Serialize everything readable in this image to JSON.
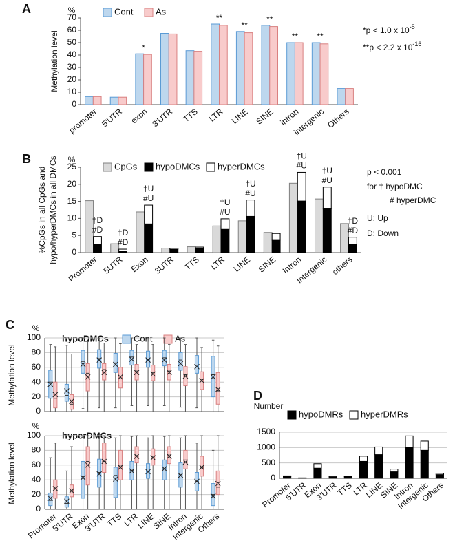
{
  "chart_data": [
    {
      "type": "bar",
      "label": "A",
      "ylabel": "Methylation level",
      "y_unit": "%",
      "categories": [
        "promoter",
        "5'UTR",
        "exon",
        "3'UTR",
        "TTS",
        "LTR",
        "LINE",
        "SINE",
        "intron",
        "intergenic",
        "Others"
      ],
      "series": [
        {
          "name": "Cont",
          "color": "#bdd7ee",
          "edgecolor": "#5b9bd5",
          "values": [
            6.5,
            6,
            41,
            57.5,
            43.5,
            65,
            59,
            64,
            50,
            50,
            13
          ]
        },
        {
          "name": "As",
          "color": "#f8cbcb",
          "edgecolor": "#d98080",
          "values": [
            6.5,
            6,
            40.5,
            57,
            43,
            64,
            58,
            63,
            50,
            49,
            13
          ]
        }
      ],
      "significance": [
        null,
        null,
        "*",
        null,
        null,
        "**",
        "**",
        "**",
        "**",
        "**",
        null
      ],
      "notes": [
        {
          "text": "*p < 1.0 x 10",
          "sup": "-5"
        },
        {
          "text": "**p < 2.2 x 10",
          "sup": "-16"
        }
      ],
      "ylim": [
        0,
        70
      ],
      "yticks": [
        0,
        10,
        20,
        30,
        40,
        50,
        60,
        70
      ],
      "grid": false
    },
    {
      "type": "bar",
      "label": "B",
      "ylabel": [
        "%CpGs in all CpGs and",
        "hypo/hyperDMCs in all DMCs"
      ],
      "y_unit": "%",
      "categories": [
        "Promoter",
        "5UTR",
        "Exon",
        "3UTR",
        "TTS",
        "LTR",
        "LINE",
        "SINE",
        "Intron",
        "Intergenic",
        "others"
      ],
      "series": [
        {
          "name": "CpGs",
          "color": "#d9d9d9",
          "edgecolor": "#808080",
          "values": [
            15.2,
            2.6,
            11.9,
            1.3,
            1.7,
            7.8,
            9.3,
            5.9,
            20.3,
            15.7,
            8.5
          ]
        },
        {
          "name": "hypoDMCs",
          "color": "#000000",
          "edgecolor": "#000000",
          "stacked": true,
          "values": [
            2.5,
            0.5,
            8.4,
            1.0,
            1.2,
            6.8,
            10.6,
            3.6,
            15.1,
            13.0,
            2.4
          ]
        },
        {
          "name": "hyperDMCs",
          "color": "#ffffff",
          "edgecolor": "#000000",
          "stacked": true,
          "values": [
            2.2,
            0.5,
            5.5,
            0.3,
            0.4,
            3.1,
            4.8,
            2.0,
            8.4,
            6.2,
            2.1
          ]
        }
      ],
      "annotations": [
        [
          "†D",
          "#D"
        ],
        [
          "†D",
          "#D"
        ],
        [
          "†U",
          "#U"
        ],
        null,
        null,
        [
          "†U",
          "#U"
        ],
        [
          "†U",
          "#U"
        ],
        null,
        [
          "†U",
          "#U"
        ],
        [
          "†U",
          "#U"
        ],
        [
          "†D",
          "#D"
        ]
      ],
      "notes": [
        "p < 0.001",
        "for † hypoDMC",
        "# hyperDMC",
        "U: Up",
        "D: Down"
      ],
      "ylim": [
        0,
        25
      ],
      "yticks": [
        0,
        5,
        10,
        15,
        20,
        25
      ],
      "grid": false
    },
    {
      "type": "box",
      "label": "C",
      "title": "hypoDMCs",
      "ylabel": "Methylation level",
      "y_unit": "%",
      "series": [
        {
          "name": "Cont",
          "color": "#bdd7ee",
          "edgecolor": "#5b9bd5",
          "boxes": [
            {
              "whisker_low": 0,
              "q1": 18,
              "median": 40,
              "q3": 56,
              "whisker_high": 91,
              "mean": 37
            },
            {
              "whisker_low": 0,
              "q1": 14,
              "median": 22,
              "q3": 37,
              "whisker_high": 90,
              "mean": 28
            },
            {
              "whisker_low": 4,
              "q1": 52,
              "median": 68,
              "q3": 83,
              "whisker_high": 100,
              "mean": 64
            },
            {
              "whisker_low": 5,
              "q1": 59,
              "median": 72,
              "q3": 84,
              "whisker_high": 100,
              "mean": 70
            },
            {
              "whisker_low": 5,
              "q1": 53,
              "median": 66,
              "q3": 79,
              "whisker_high": 100,
              "mean": 64
            },
            {
              "whisker_low": 8,
              "q1": 63,
              "median": 74,
              "q3": 83,
              "whisker_high": 100,
              "mean": 71
            },
            {
              "whisker_low": 8,
              "q1": 60,
              "median": 71,
              "q3": 82,
              "whisker_high": 100,
              "mean": 70
            },
            {
              "whisker_low": 8,
              "q1": 62,
              "median": 73,
              "q3": 83,
              "whisker_high": 100,
              "mean": 70
            },
            {
              "whisker_low": 6,
              "q1": 56,
              "median": 70,
              "q3": 80,
              "whisker_high": 100,
              "mean": 65
            },
            {
              "whisker_low": 5,
              "q1": 52,
              "median": 63,
              "q3": 76,
              "whisker_high": 100,
              "mean": 61
            },
            {
              "whisker_low": 0,
              "q1": 20,
              "median": 50,
              "q3": 75,
              "whisker_high": 97,
              "mean": 47
            }
          ]
        },
        {
          "name": "As",
          "color": "#f8cbcb",
          "edgecolor": "#d98080",
          "boxes": [
            {
              "whisker_low": 0,
              "q1": 5,
              "median": 18,
              "q3": 40,
              "whisker_high": 88,
              "mean": 23
            },
            {
              "whisker_low": 0,
              "q1": 3,
              "median": 10,
              "q3": 23,
              "whisker_high": 78,
              "mean": 14
            },
            {
              "whisker_low": 0,
              "q1": 28,
              "median": 52,
              "q3": 65,
              "whisker_high": 95,
              "mean": 47
            },
            {
              "whisker_low": 0,
              "q1": 43,
              "median": 57,
              "q3": 65,
              "whisker_high": 93,
              "mean": 53
            },
            {
              "whisker_low": 0,
              "q1": 32,
              "median": 48,
              "q3": 60,
              "whisker_high": 92,
              "mean": 47
            },
            {
              "whisker_low": 0,
              "q1": 43,
              "median": 55,
              "q3": 64,
              "whisker_high": 91,
              "mean": 53
            },
            {
              "whisker_low": 0,
              "q1": 42,
              "median": 53,
              "q3": 63,
              "whisker_high": 91,
              "mean": 51
            },
            {
              "whisker_low": 0,
              "q1": 43,
              "median": 55,
              "q3": 64,
              "whisker_high": 91,
              "mean": 53
            },
            {
              "whisker_low": 0,
              "q1": 35,
              "median": 50,
              "q3": 61,
              "whisker_high": 91,
              "mean": 48
            },
            {
              "whisker_low": 0,
              "q1": 30,
              "median": 44,
              "q3": 54,
              "whisker_high": 87,
              "mean": 42
            },
            {
              "whisker_low": 0,
              "q1": 10,
              "median": 28,
              "q3": 53,
              "whisker_high": 89,
              "mean": 30
            }
          ]
        }
      ],
      "ylim": [
        0,
        100
      ],
      "yticks": [
        0,
        20,
        40,
        60,
        80,
        100
      ],
      "grid": true
    },
    {
      "type": "box",
      "title": "hyperDMCs",
      "ylabel": "Methylation level",
      "y_unit": "%",
      "categories": [
        "Promoter",
        "5'UTR",
        "Exon",
        "3'UTR",
        "TTS",
        "LTR",
        "LINE",
        "SINE",
        "Intron",
        "Intergenic",
        "Others"
      ],
      "series": [
        {
          "color": "#bdd7ee",
          "edgecolor": "#5b9bd5",
          "boxes": [
            {
              "whisker_low": 0,
              "q1": 5,
              "median": 12,
              "q3": 22,
              "whisker_high": 70,
              "mean": 15
            },
            {
              "whisker_low": 0,
              "q1": 3,
              "median": 8,
              "q3": 17,
              "whisker_high": 52,
              "mean": 11
            },
            {
              "whisker_low": 0,
              "q1": 15,
              "median": 45,
              "q3": 65,
              "whisker_high": 98,
              "mean": 43
            },
            {
              "whisker_low": 0,
              "q1": 30,
              "median": 50,
              "q3": 68,
              "whisker_high": 96,
              "mean": 48
            },
            {
              "whisker_low": 0,
              "q1": 16,
              "median": 46,
              "q3": 57,
              "whisker_high": 97,
              "mean": 41
            },
            {
              "whisker_low": 0,
              "q1": 40,
              "median": 53,
              "q3": 65,
              "whisker_high": 99,
              "mean": 52
            },
            {
              "whisker_low": 0,
              "q1": 42,
              "median": 52,
              "q3": 62,
              "whisker_high": 97,
              "mean": 51
            },
            {
              "whisker_low": 0,
              "q1": 40,
              "median": 55,
              "q3": 67,
              "whisker_high": 99,
              "mean": 55
            },
            {
              "whisker_low": 0,
              "q1": 30,
              "median": 47,
              "q3": 63,
              "whisker_high": 97,
              "mean": 46
            },
            {
              "whisker_low": 0,
              "q1": 25,
              "median": 38,
              "q3": 50,
              "whisker_high": 90,
              "mean": 38
            },
            {
              "whisker_low": 0,
              "q1": 5,
              "median": 20,
              "q3": 35,
              "whisker_high": 80,
              "mean": 18
            }
          ]
        },
        {
          "color": "#f8cbcb",
          "edgecolor": "#d98080",
          "boxes": [
            {
              "whisker_low": 0,
              "q1": 15,
              "median": 30,
              "q3": 40,
              "whisker_high": 90,
              "mean": 28
            },
            {
              "whisker_low": 0,
              "q1": 17,
              "median": 25,
              "q3": 33,
              "whisker_high": 85,
              "mean": 25
            },
            {
              "whisker_low": 0,
              "q1": 33,
              "median": 65,
              "q3": 85,
              "whisker_high": 100,
              "mean": 60
            },
            {
              "whisker_low": 0,
              "q1": 50,
              "median": 65,
              "q3": 90,
              "whisker_high": 100,
              "mean": 65
            },
            {
              "whisker_low": 0,
              "q1": 40,
              "median": 60,
              "q3": 80,
              "whisker_high": 100,
              "mean": 57
            },
            {
              "whisker_low": 0,
              "q1": 63,
              "median": 73,
              "q3": 85,
              "whisker_high": 100,
              "mean": 72
            },
            {
              "whisker_low": 0,
              "q1": 60,
              "median": 72,
              "q3": 82,
              "whisker_high": 100,
              "mean": 70
            },
            {
              "whisker_low": 0,
              "q1": 62,
              "median": 75,
              "q3": 85,
              "whisker_high": 100,
              "mean": 72
            },
            {
              "whisker_low": 0,
              "q1": 55,
              "median": 67,
              "q3": 80,
              "whisker_high": 100,
              "mean": 64
            },
            {
              "whisker_low": 0,
              "q1": 45,
              "median": 57,
              "q3": 72,
              "whisker_high": 100,
              "mean": 57
            },
            {
              "whisker_low": 0,
              "q1": 20,
              "median": 30,
              "q3": 52,
              "whisker_high": 100,
              "mean": 35
            }
          ]
        }
      ],
      "ylim": [
        0,
        100
      ],
      "yticks": [
        0,
        20,
        40,
        60,
        80,
        100
      ],
      "grid": true
    },
    {
      "type": "bar",
      "label": "D",
      "y_unit": "Number",
      "categories": [
        "Promoter",
        "5'UTR",
        "Exon",
        "3'UTR",
        "TTS",
        "LTR",
        "LINE",
        "SINE",
        "Intron",
        "Intergenic",
        "Others"
      ],
      "series": [
        {
          "name": "hypoDMRs",
          "color": "#000000",
          "edgecolor": "#000000",
          "stacked": true,
          "values": [
            60,
            5,
            330,
            50,
            50,
            550,
            770,
            210,
            1010,
            910,
            120
          ]
        },
        {
          "name": "hyperDMRs",
          "color": "#ffffff",
          "edgecolor": "#000000",
          "stacked": true,
          "values": [
            20,
            10,
            145,
            25,
            20,
            170,
            250,
            90,
            370,
            300,
            40
          ]
        }
      ],
      "ylim": [
        0,
        1500
      ],
      "yticks": [
        0,
        500,
        1000,
        1500
      ],
      "grid": true
    }
  ]
}
